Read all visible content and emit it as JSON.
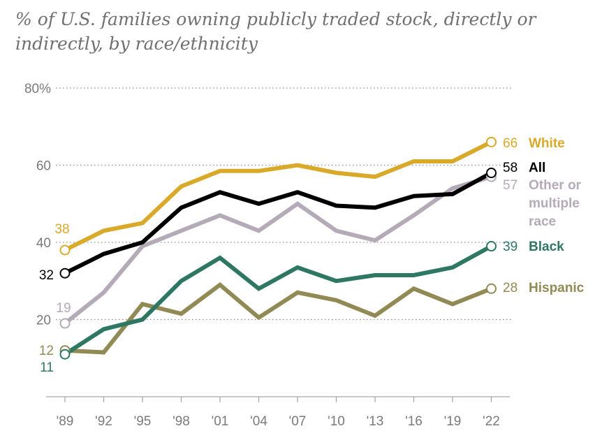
{
  "chart_data": {
    "type": "line",
    "title": "% of U.S. families owning publicly traded stock, directly or indirectly, by race/ethnicity",
    "x": [
      "'89",
      "'92",
      "'95",
      "'98",
      "'01",
      "'04",
      "'07",
      "'10",
      "'13",
      "'16",
      "'19",
      "'22"
    ],
    "ylim": [
      0,
      80
    ],
    "y_ticks": [
      {
        "value": 20,
        "label": "20"
      },
      {
        "value": 40,
        "label": "40"
      },
      {
        "value": 60,
        "label": "60"
      },
      {
        "value": 80,
        "label": "80%"
      }
    ],
    "grid": "horizontal dotted",
    "series": [
      {
        "key": "white",
        "name": "White",
        "color": "#d9a92a",
        "values": [
          38,
          43,
          45,
          54.5,
          58.5,
          58.5,
          60,
          58,
          57,
          61,
          61,
          66
        ],
        "start_label": "38",
        "end_label": "66"
      },
      {
        "key": "all",
        "name": "All",
        "color": "#000000",
        "values": [
          32,
          37,
          40,
          49,
          53,
          50,
          53,
          49.5,
          49,
          52,
          52.5,
          58
        ],
        "start_label": "32",
        "end_label": "58"
      },
      {
        "key": "other",
        "name": "Other or multiple race",
        "color": "#b4aab8",
        "values": [
          19,
          27,
          39,
          43,
          47,
          43,
          50,
          43,
          40.5,
          47,
          54,
          57
        ],
        "start_label": "19",
        "end_label": "57"
      },
      {
        "key": "black",
        "name": "Black",
        "color": "#2e7863",
        "values": [
          11,
          17.5,
          20,
          30,
          36,
          28,
          33.5,
          30,
          31.5,
          31.5,
          33.5,
          39
        ],
        "start_label": "11",
        "end_label": "39"
      },
      {
        "key": "hispanic",
        "name": "Hispanic",
        "color": "#928a55",
        "values": [
          12,
          11.5,
          24,
          21.5,
          29,
          20.5,
          27,
          25,
          21,
          28,
          24,
          28
        ],
        "start_label": "12",
        "end_label": "28"
      }
    ]
  }
}
